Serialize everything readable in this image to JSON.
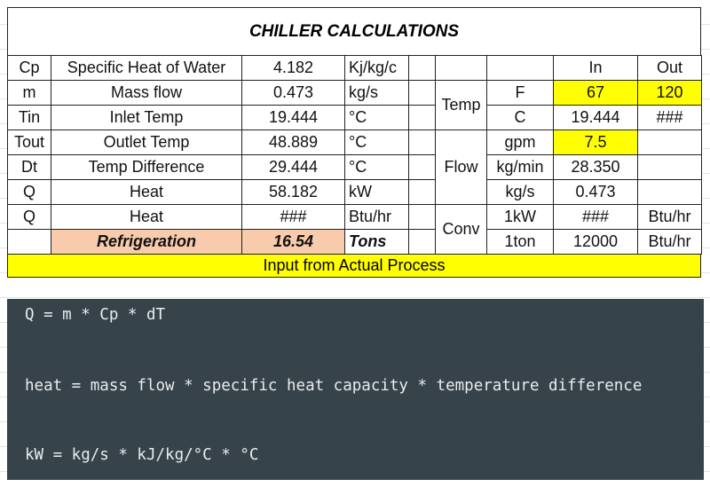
{
  "title": "CHILLER CALCULATIONS",
  "table": {
    "rows": [
      [
        "Cp",
        "Specific Heat of Water",
        "4.182",
        "Kj/kg/c",
        null,
        null,
        null,
        "In",
        "Out"
      ],
      [
        "m",
        "Mass flow",
        "0.473",
        "kg/s",
        null,
        "Temp",
        "F",
        "67",
        "120"
      ],
      [
        "Tin",
        "Inlet Temp",
        "19.444",
        "°C",
        null,
        null,
        "C",
        "19.444",
        "###"
      ],
      [
        "Tout",
        "Outlet Temp",
        "48.889",
        "°C",
        null,
        "Flow",
        "gpm",
        "7.5",
        null
      ],
      [
        "Dt",
        "Temp Difference",
        "29.444",
        "°C",
        null,
        null,
        "kg/min",
        "28.350",
        null
      ],
      [
        "Q",
        "Heat",
        "58.182",
        "kW",
        null,
        null,
        "kg/s",
        "0.473",
        null
      ],
      [
        "Q",
        "Heat",
        "###",
        "Btu/hr",
        null,
        "Conv",
        "1kW",
        "###",
        "Btu/hr"
      ],
      [
        null,
        "Refrigeration",
        "16.54",
        "Tons",
        null,
        null,
        "1ton",
        "12000",
        "Btu/hr"
      ]
    ]
  },
  "footer": "Input from Actual Process",
  "code": [
    "Q = m * Cp * dT",
    "heat = mass flow * specific heat capacity * temperature difference",
    "kW = kg/s * kJ/kg/°C * °C"
  ]
}
